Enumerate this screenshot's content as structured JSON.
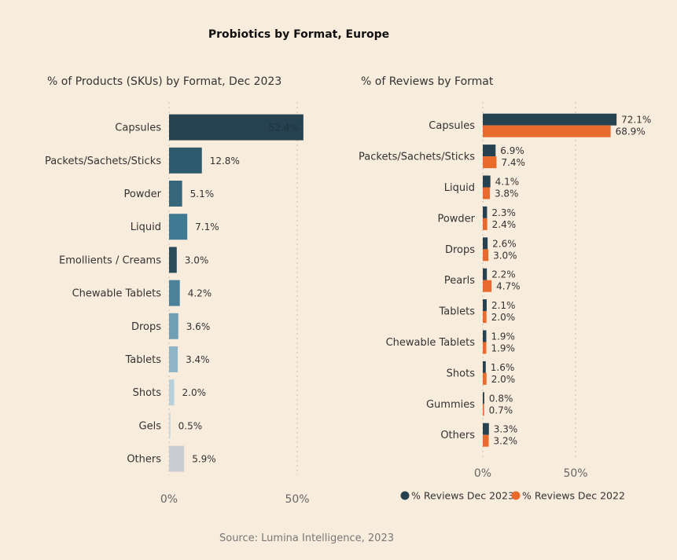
{
  "title": "Probiotics by Format, Europe",
  "source": "Source: Lumina Intelligence, 2023",
  "chart_data": [
    {
      "type": "bar",
      "orientation": "horizontal",
      "title": "% of Products (SKUs) by Format, Dec 2023",
      "categories": [
        "Capsules",
        "Packets/Sachets/Sticks",
        "Powder",
        "Liquid",
        "Emollients / Creams",
        "Chewable Tablets",
        "Drops",
        "Tablets",
        "Shots",
        "Gels",
        "Others"
      ],
      "values": [
        52.4,
        12.8,
        5.1,
        7.1,
        3.0,
        4.2,
        3.6,
        3.4,
        2.0,
        0.5,
        5.9
      ],
      "value_labels": [
        "52.4%",
        "12.8%",
        "5.1%",
        "7.1%",
        "3.0%",
        "4.2%",
        "3.6%",
        "3.4%",
        "2.0%",
        "0.5%",
        "5.9%"
      ],
      "colors": [
        "#26414f",
        "#2e5a6d",
        "#36667a",
        "#3f7a92",
        "#2c4c5c",
        "#4b829a",
        "#6f9fb2",
        "#8fb5c6",
        "#b7d0db",
        "#c4d6de",
        "#c9cdd1"
      ],
      "x_ticks": [
        "0%",
        "50%"
      ],
      "xlim": [
        0,
        55
      ]
    },
    {
      "type": "bar",
      "orientation": "horizontal",
      "title": "% of Reviews by Format",
      "categories": [
        "Capsules",
        "Packets/Sachets/Sticks",
        "Liquid",
        "Powder",
        "Drops",
        "Pearls",
        "Tablets",
        "Chewable Tablets",
        "Shots",
        "Gummies",
        "Others"
      ],
      "series": [
        {
          "name": "% Reviews Dec 2023",
          "color": "#26414f",
          "values": [
            72.1,
            6.9,
            4.1,
            2.3,
            2.6,
            2.2,
            2.1,
            1.9,
            1.6,
            0.8,
            3.3
          ],
          "labels": [
            "72.1%",
            "6.9%",
            "4.1%",
            "2.3%",
            "2.6%",
            "2.2%",
            "2.1%",
            "1.9%",
            "1.6%",
            "0.8%",
            "3.3%"
          ]
        },
        {
          "name": "% Reviews Dec 2022",
          "color": "#e96b2c",
          "values": [
            68.9,
            7.4,
            3.8,
            2.4,
            3.0,
            4.7,
            2.0,
            1.9,
            2.0,
            0.7,
            3.2
          ],
          "labels": [
            "68.9%",
            "7.4%",
            "3.8%",
            "2.4%",
            "3.0%",
            "4.7%",
            "2.0%",
            "1.9%",
            "2.0%",
            "0.7%",
            "3.2%"
          ]
        }
      ],
      "x_ticks": [
        "0%",
        "50%"
      ],
      "xlim": [
        0,
        75
      ],
      "legend": "bottom"
    }
  ]
}
